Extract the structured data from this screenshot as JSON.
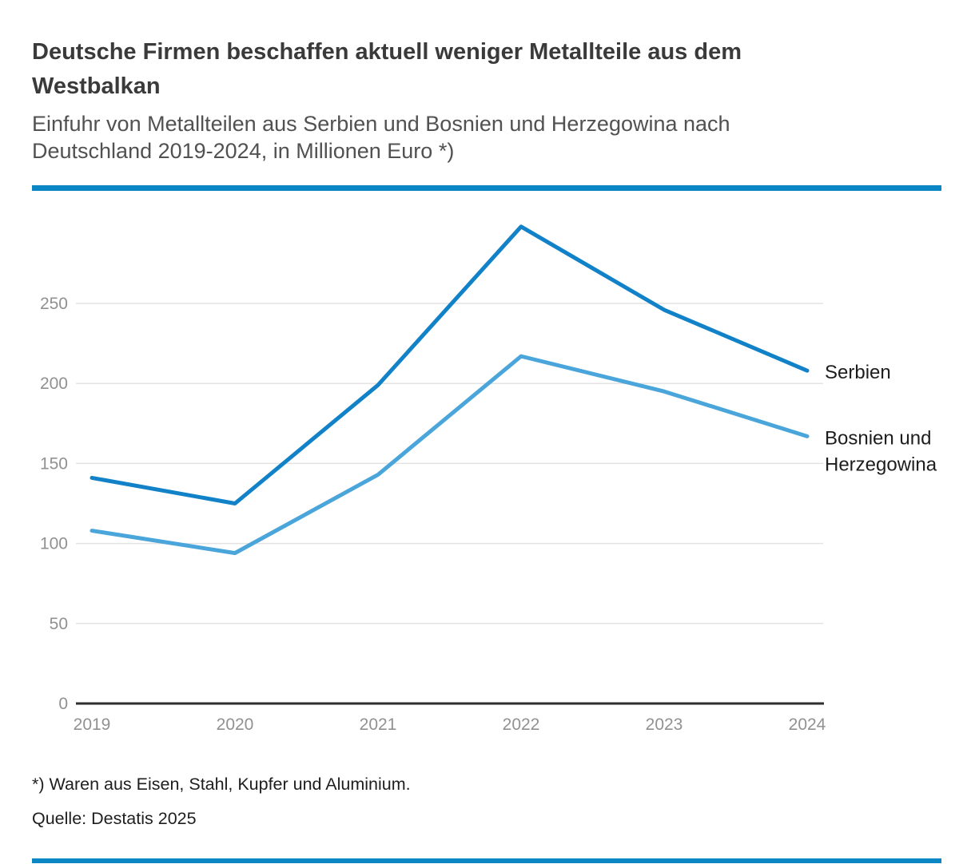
{
  "header": {
    "title_lines": [
      "Deutsche Firmen beschaffen aktuell weniger Metallteile aus dem",
      "Westbalkan"
    ],
    "subtitle_lines": [
      "Einfuhr von Metallteilen aus Serbien und Bosnien und Herzegowina nach",
      "Deutschland 2019-2024, in Millionen Euro *)"
    ]
  },
  "colors": {
    "accent_bar": "#0b86c4",
    "axis_line": "#2e2e2e",
    "gridline": "#e3e3e3",
    "tick_text": "#919191",
    "series_label_text": "#1d1d1d"
  },
  "chart_data": {
    "type": "line",
    "title": "Deutsche Firmen beschaffen aktuell weniger Metallteile aus dem Westbalkan",
    "subtitle": "Einfuhr von Metallteilen aus Serbien und Bosnien und Herzegowina nach Deutschland 2019-2024, in Millionen Euro *)",
    "x": [
      "2019",
      "2020",
      "2021",
      "2022",
      "2023",
      "2024"
    ],
    "series": [
      {
        "name": "Serbien",
        "label_lines": [
          "Serbien"
        ],
        "color": "#1282c8",
        "values": [
          141,
          125,
          199,
          298,
          246,
          208
        ]
      },
      {
        "name": "Bosnien und Herzegowina",
        "label_lines": [
          "Bosnien und",
          "Herzegowina"
        ],
        "color": "#4aa5db",
        "values": [
          108,
          94,
          143,
          217,
          195,
          167
        ]
      }
    ],
    "ylim": [
      0,
      300
    ],
    "yticks": [
      0,
      50,
      100,
      150,
      200,
      250
    ],
    "grid": "horizontal-only",
    "legend_position": "right-of-line-ends",
    "unit": "Millionen Euro"
  },
  "footer": {
    "footnote": "*) Waren aus Eisen, Stahl, Kupfer und Aluminium.",
    "source": "Quelle: Destatis 2025"
  }
}
